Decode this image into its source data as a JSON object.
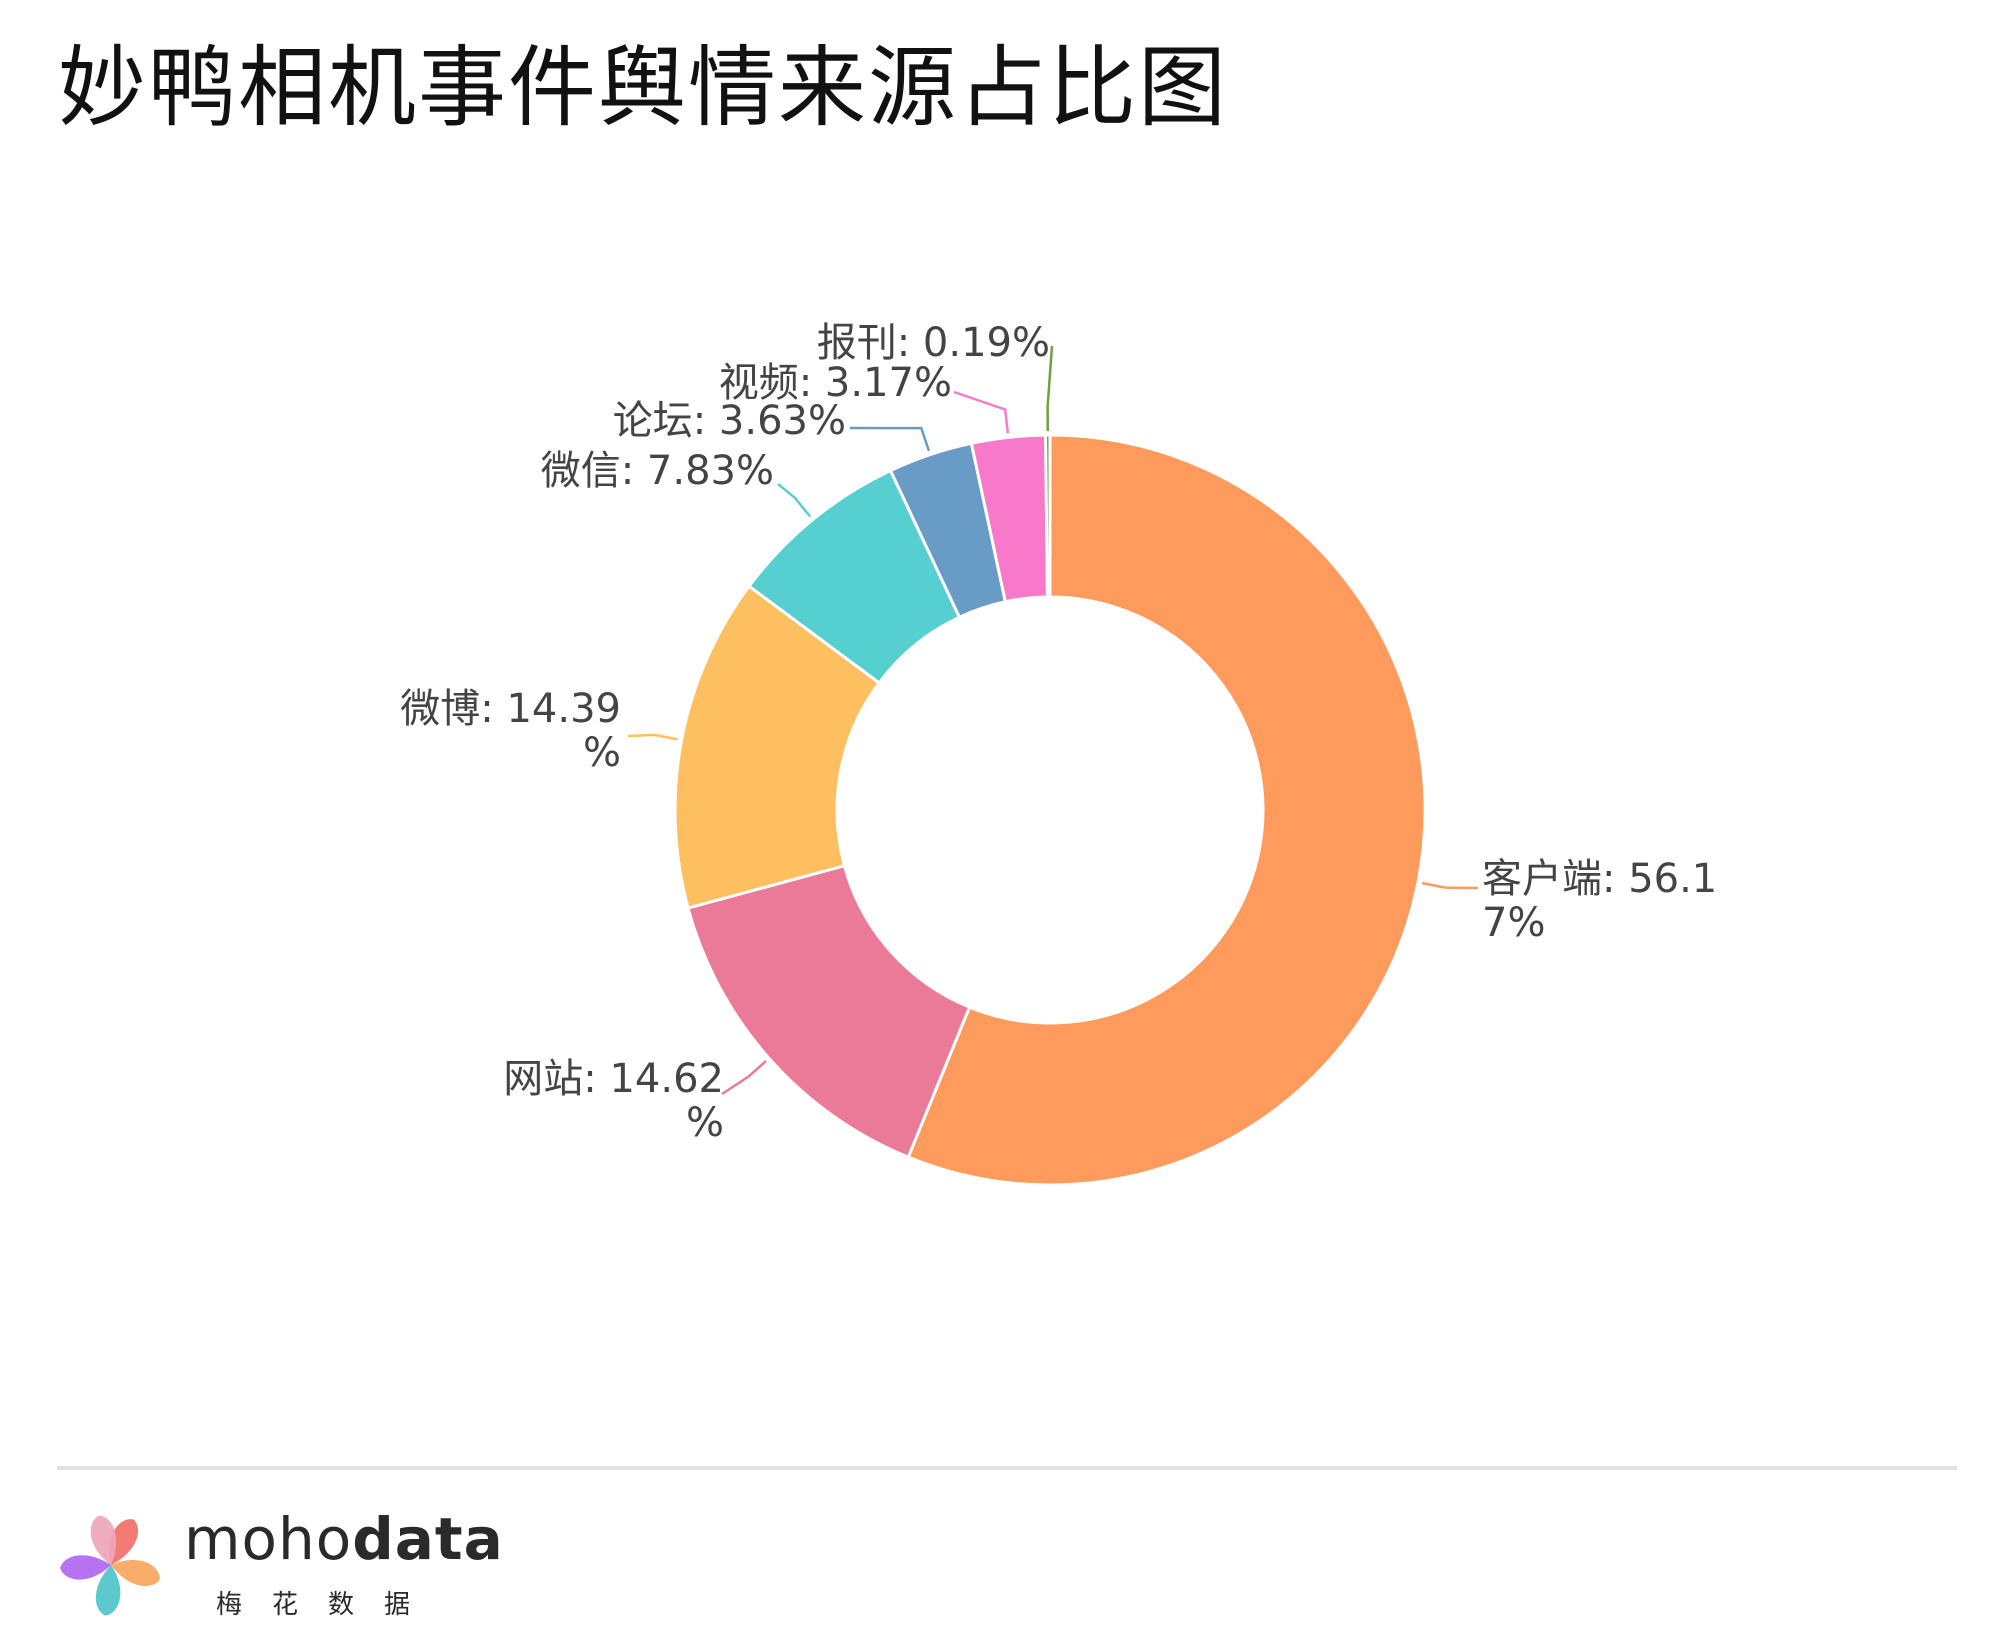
{
  "title": "妙鸭相机事件舆情来源占比图",
  "chart_data": {
    "type": "pie",
    "variant": "donut",
    "title": "妙鸭相机事件舆情来源占比图",
    "slices": [
      {
        "name": "客户端",
        "value": 56.17,
        "label_lines": [
          "客户端: 56.1",
          "7%"
        ],
        "color": "#fe9b5c"
      },
      {
        "name": "网站",
        "value": 14.62,
        "label_lines": [
          "网站: 14.62",
          "%"
        ],
        "color": "#eb7a99"
      },
      {
        "name": "微博",
        "value": 14.39,
        "label_lines": [
          "微博: 14.39",
          "%"
        ],
        "color": "#fdbf5f"
      },
      {
        "name": "微信",
        "value": 7.83,
        "label_lines": [
          "微信: 7.83%"
        ],
        "color": "#56cfd1"
      },
      {
        "name": "论坛",
        "value": 3.63,
        "label_lines": [
          "论坛: 3.63%"
        ],
        "color": "#689cc6"
      },
      {
        "name": "视频",
        "value": 3.17,
        "label_lines": [
          "视频: 3.17%"
        ],
        "color": "#f878c9"
      },
      {
        "name": "报刊",
        "value": 0.19,
        "label_lines": [
          "报刊: 0.19%"
        ],
        "color": "#6ba33f"
      }
    ],
    "legend": "none",
    "labels": "outside with leader lines"
  },
  "brand": {
    "wordmark_light": "moho",
    "wordmark_bold": "data",
    "subtitle": "梅花数据",
    "petal_colors": [
      "#f0716a",
      "#f7a65c",
      "#4fc4c8",
      "#b066f0",
      "#eea5b8"
    ]
  }
}
